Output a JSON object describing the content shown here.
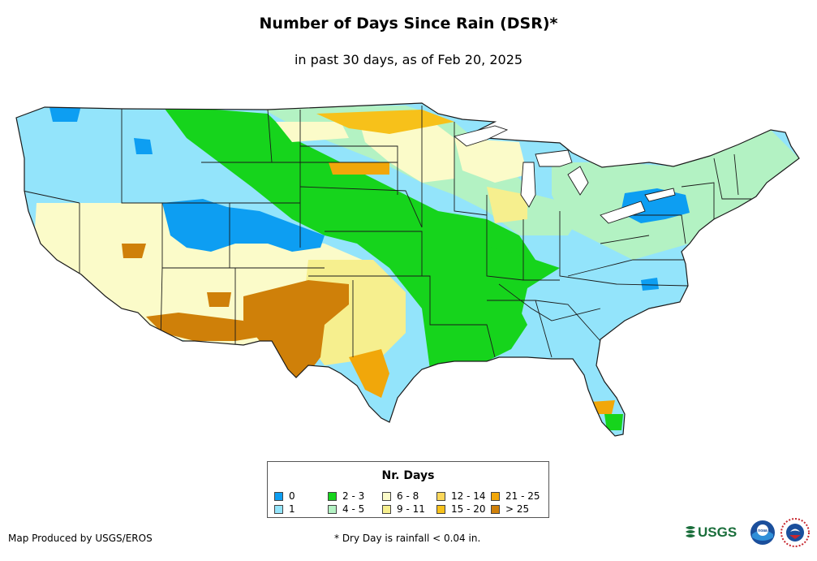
{
  "title": "Number of Days Since Rain (DSR)*",
  "subtitle": "in past 30 days, as of Feb 20, 2025",
  "legend": {
    "title": "Nr. Days",
    "classes": [
      {
        "label": "0",
        "color": "#0d9ef2"
      },
      {
        "label": "1",
        "color": "#93e4fb"
      },
      {
        "label": "2 - 3",
        "color": "#16d41c"
      },
      {
        "label": "4 - 5",
        "color": "#b3f2c3"
      },
      {
        "label": "6 - 8",
        "color": "#fbfbc9"
      },
      {
        "label": "9 - 11",
        "color": "#f6ef8e"
      },
      {
        "label": "12 - 14",
        "color": "#fbd75a"
      },
      {
        "label": "15 - 20",
        "color": "#f7c11a"
      },
      {
        "label": "21 - 25",
        "color": "#f1a70a"
      },
      {
        "label": "> 25",
        "color": "#cf8009"
      }
    ]
  },
  "credit": "Map Produced by USGS/EROS",
  "footnote": "* Dry Day is rainfall < 0.04 in.",
  "logos": {
    "usgs": "USGS",
    "noaa": "noaa"
  }
}
